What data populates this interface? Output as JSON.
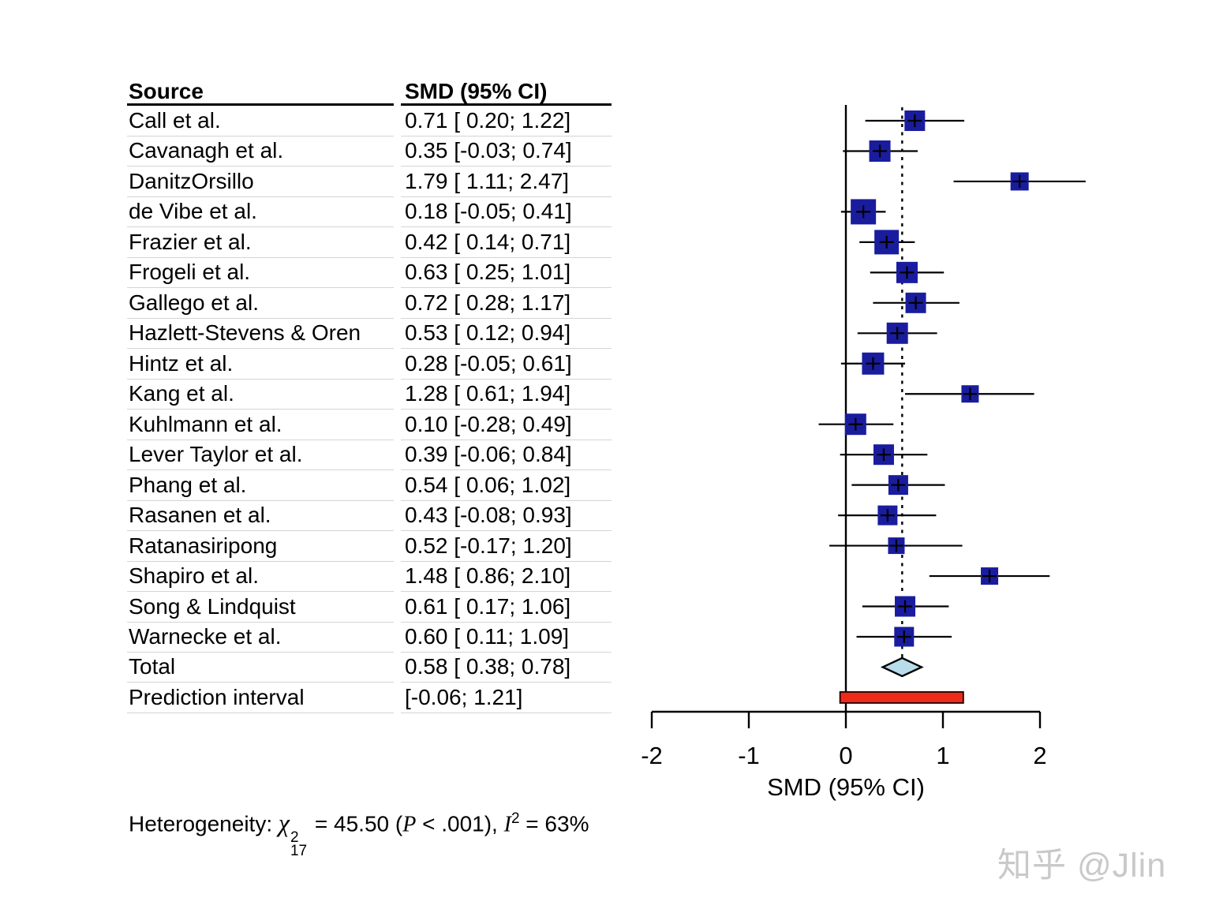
{
  "table": {
    "col1_header": "Source",
    "col2_header": "SMD (95% CI)",
    "rows": [
      {
        "source": "Call et al.",
        "value": "0.71 [ 0.20; 1.22]"
      },
      {
        "source": "Cavanagh et al.",
        "value": "0.35 [-0.03; 0.74]"
      },
      {
        "source": "DanitzOrsillo",
        "value": "1.79 [ 1.11; 2.47]"
      },
      {
        "source": "de Vibe et al.",
        "value": "0.18 [-0.05; 0.41]"
      },
      {
        "source": "Frazier et al.",
        "value": "0.42 [ 0.14; 0.71]"
      },
      {
        "source": "Frogeli et al.",
        "value": "0.63 [ 0.25; 1.01]"
      },
      {
        "source": "Gallego et al.",
        "value": "0.72 [ 0.28; 1.17]"
      },
      {
        "source": "Hazlett-Stevens & Oren",
        "value": "0.53 [ 0.12; 0.94]"
      },
      {
        "source": "Hintz et al.",
        "value": "0.28 [-0.05; 0.61]"
      },
      {
        "source": "Kang et al.",
        "value": "1.28 [ 0.61; 1.94]"
      },
      {
        "source": "Kuhlmann et al.",
        "value": "0.10 [-0.28; 0.49]"
      },
      {
        "source": "Lever Taylor et al.",
        "value": "0.39 [-0.06; 0.84]"
      },
      {
        "source": "Phang et al.",
        "value": "0.54 [ 0.06; 1.02]"
      },
      {
        "source": "Rasanen et al.",
        "value": "0.43 [-0.08; 0.93]"
      },
      {
        "source": "Ratanasiripong",
        "value": "0.52 [-0.17; 1.20]"
      },
      {
        "source": "Shapiro et al.",
        "value": "1.48 [ 0.86; 2.10]"
      },
      {
        "source": "Song & Lindquist",
        "value": "0.61 [ 0.17; 1.06]"
      },
      {
        "source": "Warnecke et al.",
        "value": "0.60 [ 0.11; 1.09]"
      },
      {
        "source": "Total",
        "value": "0.58 [ 0.38; 0.78]"
      },
      {
        "source": "Prediction interval",
        "value": "[-0.06; 1.21]"
      }
    ]
  },
  "chart_data": {
    "type": "forest",
    "xlabel": "SMD (95% CI)",
    "x_ticks": [
      -2,
      -1,
      0,
      1,
      2
    ],
    "xlim": [
      -2,
      2
    ],
    "ref_line": 0,
    "pooled_effect_line": 0.58,
    "studies": [
      {
        "name": "Call et al.",
        "smd": 0.71,
        "lo": 0.2,
        "hi": 1.22,
        "size": 26
      },
      {
        "name": "Cavanagh et al.",
        "smd": 0.35,
        "lo": -0.03,
        "hi": 0.74,
        "size": 27
      },
      {
        "name": "DanitzOrsillo",
        "smd": 1.79,
        "lo": 1.11,
        "hi": 2.47,
        "size": 23
      },
      {
        "name": "de Vibe et al.",
        "smd": 0.18,
        "lo": -0.05,
        "hi": 0.41,
        "size": 32
      },
      {
        "name": "Frazier et al.",
        "smd": 0.42,
        "lo": 0.14,
        "hi": 0.71,
        "size": 31
      },
      {
        "name": "Frogeli et al.",
        "smd": 0.63,
        "lo": 0.25,
        "hi": 1.01,
        "size": 27
      },
      {
        "name": "Gallego et al.",
        "smd": 0.72,
        "lo": 0.28,
        "hi": 1.17,
        "size": 26
      },
      {
        "name": "Hazlett-Stevens & Oren",
        "smd": 0.53,
        "lo": 0.12,
        "hi": 0.94,
        "size": 27
      },
      {
        "name": "Hintz et al.",
        "smd": 0.28,
        "lo": -0.05,
        "hi": 0.61,
        "size": 28
      },
      {
        "name": "Kang et al.",
        "smd": 1.28,
        "lo": 0.61,
        "hi": 1.94,
        "size": 22
      },
      {
        "name": "Kuhlmann et al.",
        "smd": 0.1,
        "lo": -0.28,
        "hi": 0.49,
        "size": 27
      },
      {
        "name": "Lever Taylor et al.",
        "smd": 0.39,
        "lo": -0.06,
        "hi": 0.84,
        "size": 26
      },
      {
        "name": "Phang et al.",
        "smd": 0.54,
        "lo": 0.06,
        "hi": 1.02,
        "size": 25
      },
      {
        "name": "Rasanen et al.",
        "smd": 0.43,
        "lo": -0.08,
        "hi": 0.93,
        "size": 25
      },
      {
        "name": "Ratanasiripong",
        "smd": 0.52,
        "lo": -0.17,
        "hi": 1.2,
        "size": 21
      },
      {
        "name": "Shapiro et al.",
        "smd": 1.48,
        "lo": 0.86,
        "hi": 2.1,
        "size": 22
      },
      {
        "name": "Song & Lindquist",
        "smd": 0.61,
        "lo": 0.17,
        "hi": 1.06,
        "size": 26
      },
      {
        "name": "Warnecke et al.",
        "smd": 0.6,
        "lo": 0.11,
        "hi": 1.09,
        "size": 25
      }
    ],
    "total": {
      "smd": 0.58,
      "lo": 0.38,
      "hi": 0.78
    },
    "prediction_interval": {
      "lo": -0.06,
      "hi": 1.21
    },
    "colors": {
      "square": "#1a1c9e",
      "diamond_fill": "#b9dcea",
      "prediction_bar": "#ee2b1b",
      "line": "#000000",
      "row_separator": "#d4d4d4"
    }
  },
  "footer": {
    "prefix": "Heterogeneity: ",
    "chi": "χ",
    "chi_sup": "2",
    "chi_sub": "17",
    "mid": " = 45.50 (",
    "p": "P",
    "after_p": " < .001), ",
    "i": "I",
    "i_sup": "2",
    "end": " = 63%"
  },
  "watermark": "知乎 @Jlin"
}
